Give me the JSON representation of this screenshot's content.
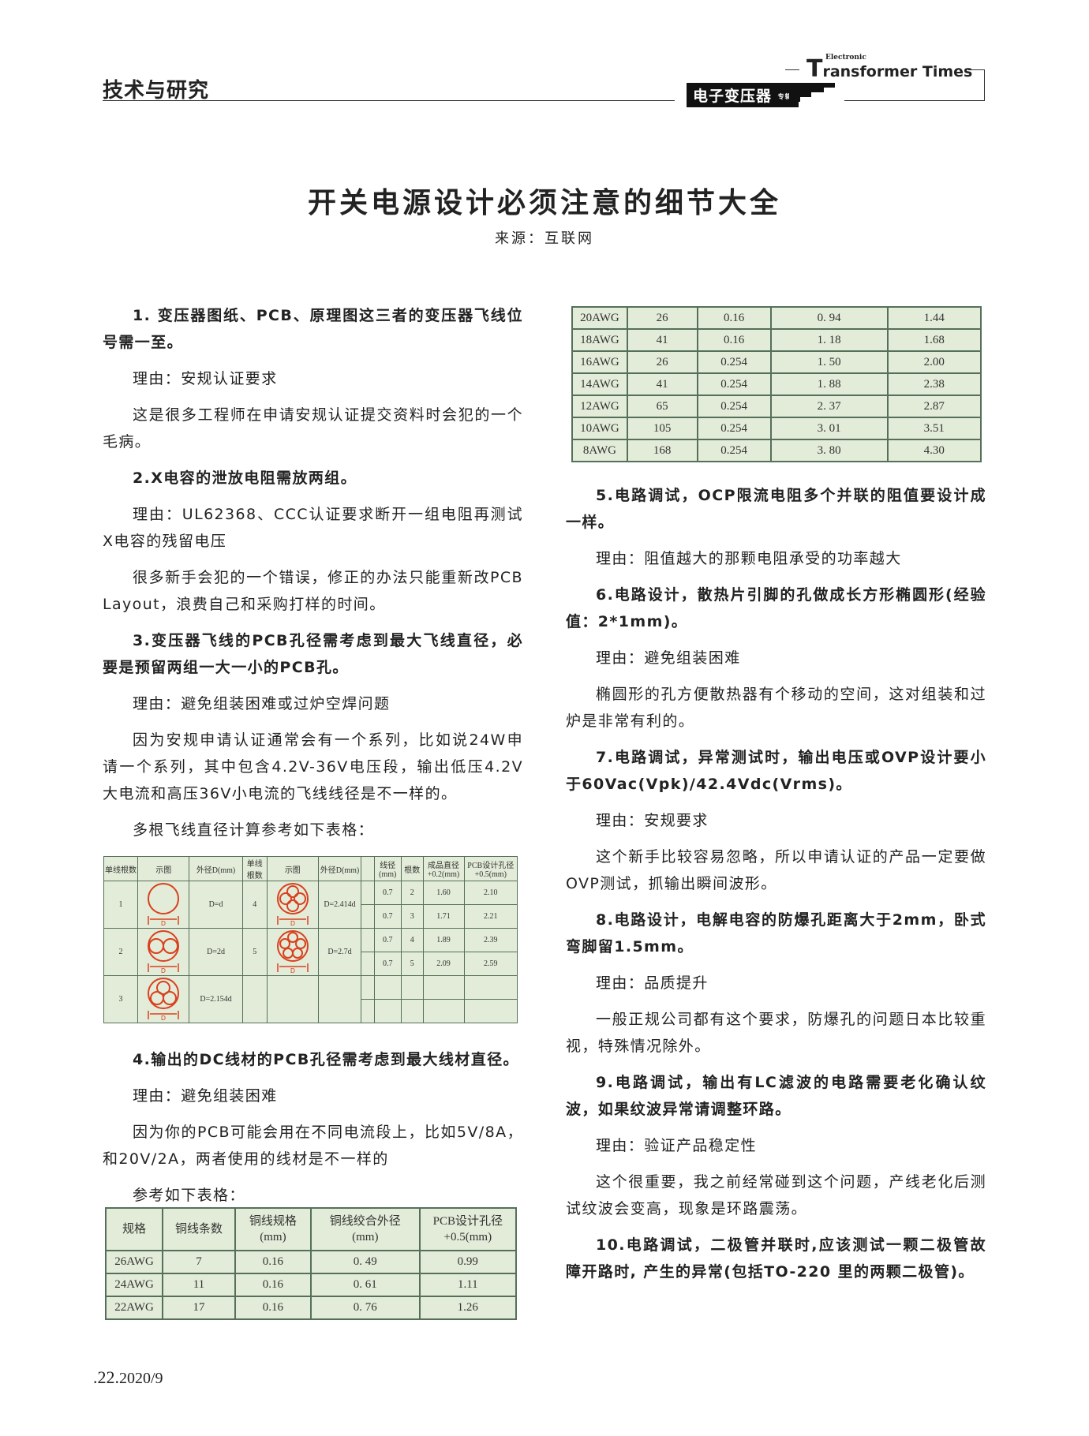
{
  "header": {
    "section": "技术与研究",
    "brand_en_small": "Electronic",
    "brand_en_T": "T",
    "brand_en_rest": "ransformer Times",
    "brand_cn": "电子变压器",
    "brand_cn_tag": "专辑"
  },
  "article": {
    "title": "开关电源设计必须注意的细节大全",
    "source": "来源：互联网"
  },
  "left_paragraphs": [
    {
      "bold": true,
      "text": "1. 变压器图纸、PCB、原理图这三者的变压器飞线位号需一至。"
    },
    {
      "bold": false,
      "text": "理由：安规认证要求"
    },
    {
      "bold": false,
      "text": "这是很多工程师在申请安规认证提交资料时会犯的一个毛病。"
    },
    {
      "bold": true,
      "text": "2.X电容的泄放电阻需放两组。"
    },
    {
      "bold": false,
      "text": "理由：UL62368、CCC认证要求断开一组电阻再测试X电容的残留电压"
    },
    {
      "bold": false,
      "text": "很多新手会犯的一个错误，修正的办法只能重新改PCB Layout，浪费自己和采购打样的时间。"
    },
    {
      "bold": true,
      "text": "3.变压器飞线的PCB孔径需考虑到最大飞线直径，必要是预留两组一大一小的PCB孔。"
    },
    {
      "bold": false,
      "text": "理由：避免组装困难或过炉空焊问题"
    },
    {
      "bold": false,
      "text": "因为安规申请认证通常会有一个系列，比如说24W申请一个系列，其中包含4.2V-36V电压段，输出低压4.2V大电流和高压36V小电流的飞线线径是不一样的。"
    },
    {
      "bold": false,
      "text": "多根飞线直径计算参考如下表格："
    }
  ],
  "left_paragraphs_2": [
    {
      "bold": true,
      "text": "4.输出的DC线材的PCB孔径需考虑到最大线材直径。"
    },
    {
      "bold": false,
      "text": "理由：避免组装困难"
    },
    {
      "bold": false,
      "text": "因为你的PCB可能会用在不同电流段上，比如5V/8A，和20V/2A，两者使用的线材是不一样的"
    },
    {
      "bold": false,
      "text": "参考如下表格："
    }
  ],
  "right_paragraphs": [
    {
      "bold": true,
      "text": "5.电路调试，OCP限流电阻多个并联的阻值要设计成一样。"
    },
    {
      "bold": false,
      "text": "理由：阻值越大的那颗电阻承受的功率越大"
    },
    {
      "bold": true,
      "text": "6.电路设计，散热片引脚的孔做成长方形椭圆形(经验值：2*1mm)。"
    },
    {
      "bold": false,
      "text": "理由：避免组装困难"
    },
    {
      "bold": false,
      "text": "椭圆形的孔方便散热器有个移动的空间，这对组装和过炉是非常有利的。"
    },
    {
      "bold": true,
      "text": "7.电路调试，异常测试时，输出电压或OVP设计要小于60Vac(Vpk)/42.4Vdc(Vrms)。"
    },
    {
      "bold": false,
      "text": "理由：安规要求"
    },
    {
      "bold": false,
      "text": "这个新手比较容易忽略，所以申请认证的产品一定要做OVP测试，抓输出瞬间波形。"
    },
    {
      "bold": true,
      "text": "8.电路设计，电解电容的防爆孔距离大于2mm，卧式弯脚留1.5mm。"
    },
    {
      "bold": false,
      "text": "理由：品质提升"
    },
    {
      "bold": false,
      "text": "一般正规公司都有这个要求，防爆孔的问题日本比较重视，特殊情况除外。"
    },
    {
      "bold": true,
      "text": "9.电路调试，输出有LC滤波的电路需要老化确认纹波，如果纹波异常请调整环路。"
    },
    {
      "bold": false,
      "text": "理由：验证产品稳定性"
    },
    {
      "bold": false,
      "text": "这个很重要，我之前经常碰到这个问题，产线老化后测试纹波会变高，现象是环路震荡。"
    },
    {
      "bold": true,
      "text": "10.电路调试，二极管并联时,应该测试一颗二极管故障开路时, 产生的异常(包括TO-220 里的两颗二极管)。"
    }
  ],
  "strand_table": {
    "headers": [
      "单线根数",
      "示图",
      "外径D(mm)",
      "单线根数",
      "示图",
      "外径D(mm)",
      "",
      "线径(mm)",
      "根数",
      "成品直径+0.2(mm)",
      "PCB设计孔径+0.5(mm)"
    ],
    "diagram_label": "D",
    "left_rows": [
      {
        "n": "1",
        "d": "D=d"
      },
      {
        "n": "2",
        "d": "D=2d"
      },
      {
        "n": "3",
        "d": "D=2.154d"
      }
    ],
    "mid_rows": [
      {
        "n": "4",
        "d": "D=2.414d"
      },
      {
        "n": "5",
        "d": "D=2.7d"
      }
    ],
    "right_rows": [
      [
        "0.7",
        "2",
        "1.60",
        "2.10"
      ],
      [
        "0.7",
        "3",
        "1.71",
        "2.21"
      ],
      [
        "0.7",
        "4",
        "1.89",
        "2.39"
      ],
      [
        "0.7",
        "5",
        "2.09",
        "2.59"
      ],
      [
        "",
        "",
        "",
        ""
      ],
      [
        "",
        "",
        "",
        ""
      ]
    ],
    "diagram_color": "#d9401f",
    "bg_color": "#e3ecd8"
  },
  "awg_table": {
    "headers": [
      "规格",
      "铜线条数",
      "铜线规格\n(mm)",
      "铜线绞合外径\n(mm)",
      "PCB设计孔径\n+0.5(mm)"
    ],
    "rows_part1": [
      [
        "26AWG",
        "7",
        "0.16",
        "0. 49",
        "0.99"
      ],
      [
        "24AWG",
        "11",
        "0.16",
        "0. 61",
        "1.11"
      ],
      [
        "22AWG",
        "17",
        "0.16",
        "0. 76",
        "1.26"
      ]
    ],
    "rows_part2": [
      [
        "20AWG",
        "26",
        "0.16",
        "0. 94",
        "1.44"
      ],
      [
        "18AWG",
        "41",
        "0.16",
        "1. 18",
        "1.68"
      ],
      [
        "16AWG",
        "26",
        "0.254",
        "1. 50",
        "2.00"
      ],
      [
        "14AWG",
        "41",
        "0.254",
        "1. 88",
        "2.38"
      ],
      [
        "12AWG",
        "65",
        "0.254",
        "2. 37",
        "2.87"
      ],
      [
        "10AWG",
        "105",
        "0.254",
        "3. 01",
        "3.51"
      ],
      [
        "8AWG",
        "168",
        "0.254",
        "3. 80",
        "4.30"
      ]
    ]
  },
  "footer": {
    "page": ".22.",
    "issue": "2020/9"
  }
}
